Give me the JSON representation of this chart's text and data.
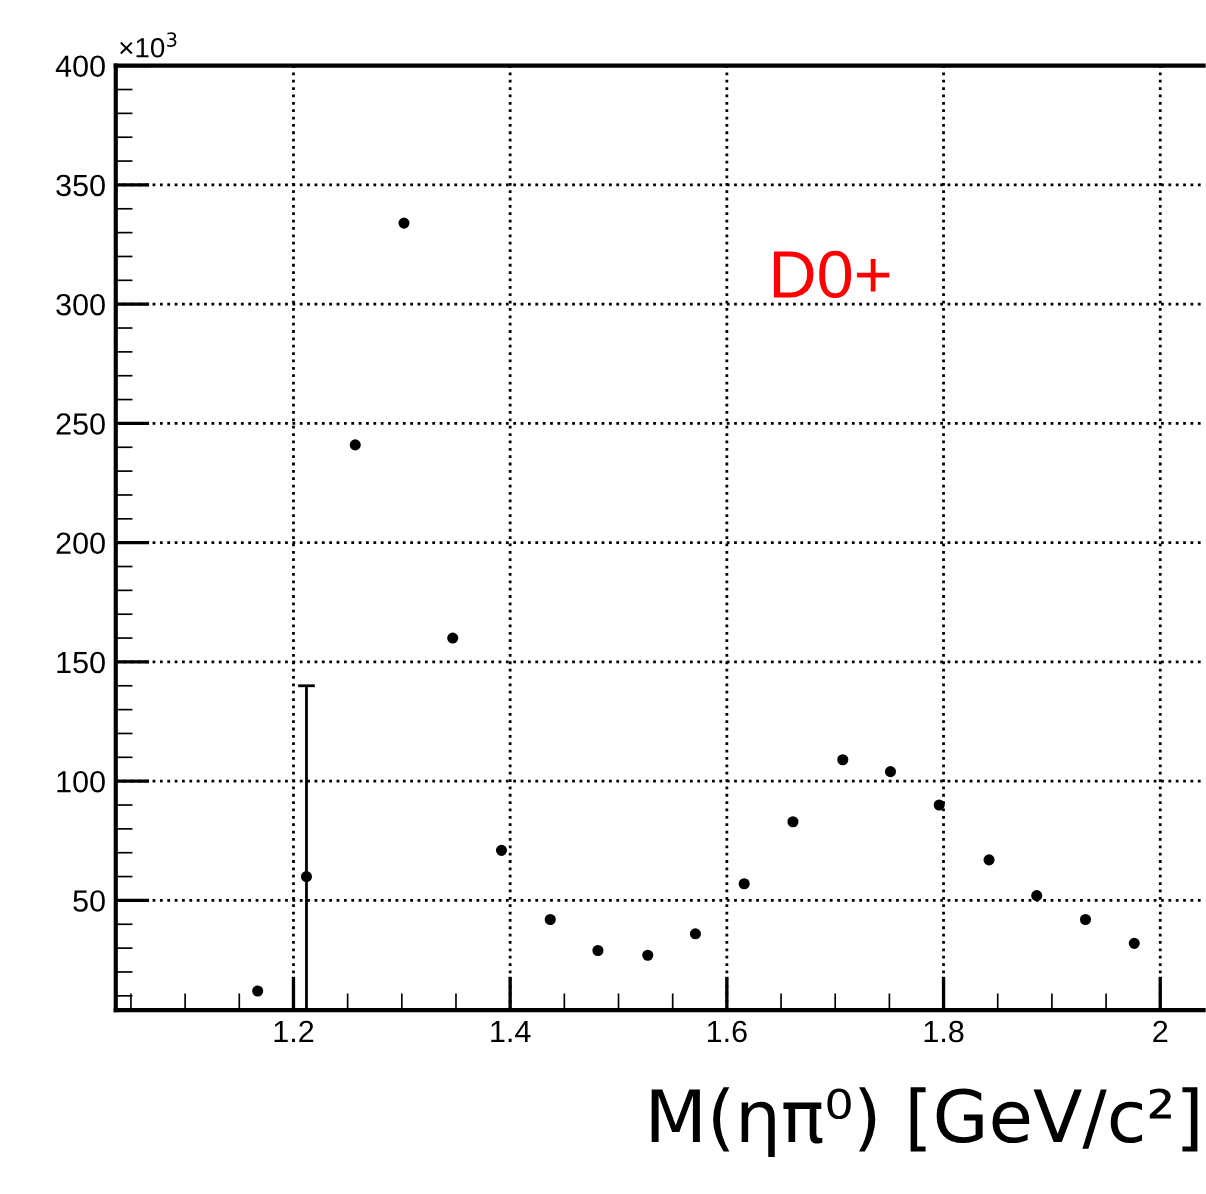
{
  "chart_data": {
    "type": "scatter",
    "xlabel": "M(ηπ⁰) [GeV/c²]",
    "annotations": [
      "×10$^{3}$",
      "D0+"
    ],
    "x": [
      1.167,
      1.212,
      1.257,
      1.302,
      1.347,
      1.392,
      1.437,
      1.481,
      1.527,
      1.571,
      1.616,
      1.661,
      1.707,
      1.751,
      1.796,
      1.842,
      1.886,
      1.931,
      1.976
    ],
    "series": [
      {
        "color": "#000000",
        "values": [
          12,
          60,
          241,
          334,
          160,
          71,
          42,
          29,
          27,
          36,
          57,
          83,
          109,
          104,
          90,
          67,
          52,
          42,
          32
        ],
        "errors": [
          null,
          [
            4,
            140
          ],
          null,
          null,
          null,
          null,
          null,
          null,
          null,
          null,
          null,
          null,
          null,
          null,
          null,
          null,
          null,
          null,
          null
        ]
      }
    ],
    "xlim": [
      1.036,
      2.04
    ],
    "xticks": [
      1.2,
      1.4,
      1.6,
      1.8,
      2
    ],
    "ylim": [
      4,
      400
    ],
    "yticks": [
      50,
      100,
      150,
      200,
      250,
      300,
      350,
      400
    ],
    "grid": true,
    "marker": "circle"
  }
}
